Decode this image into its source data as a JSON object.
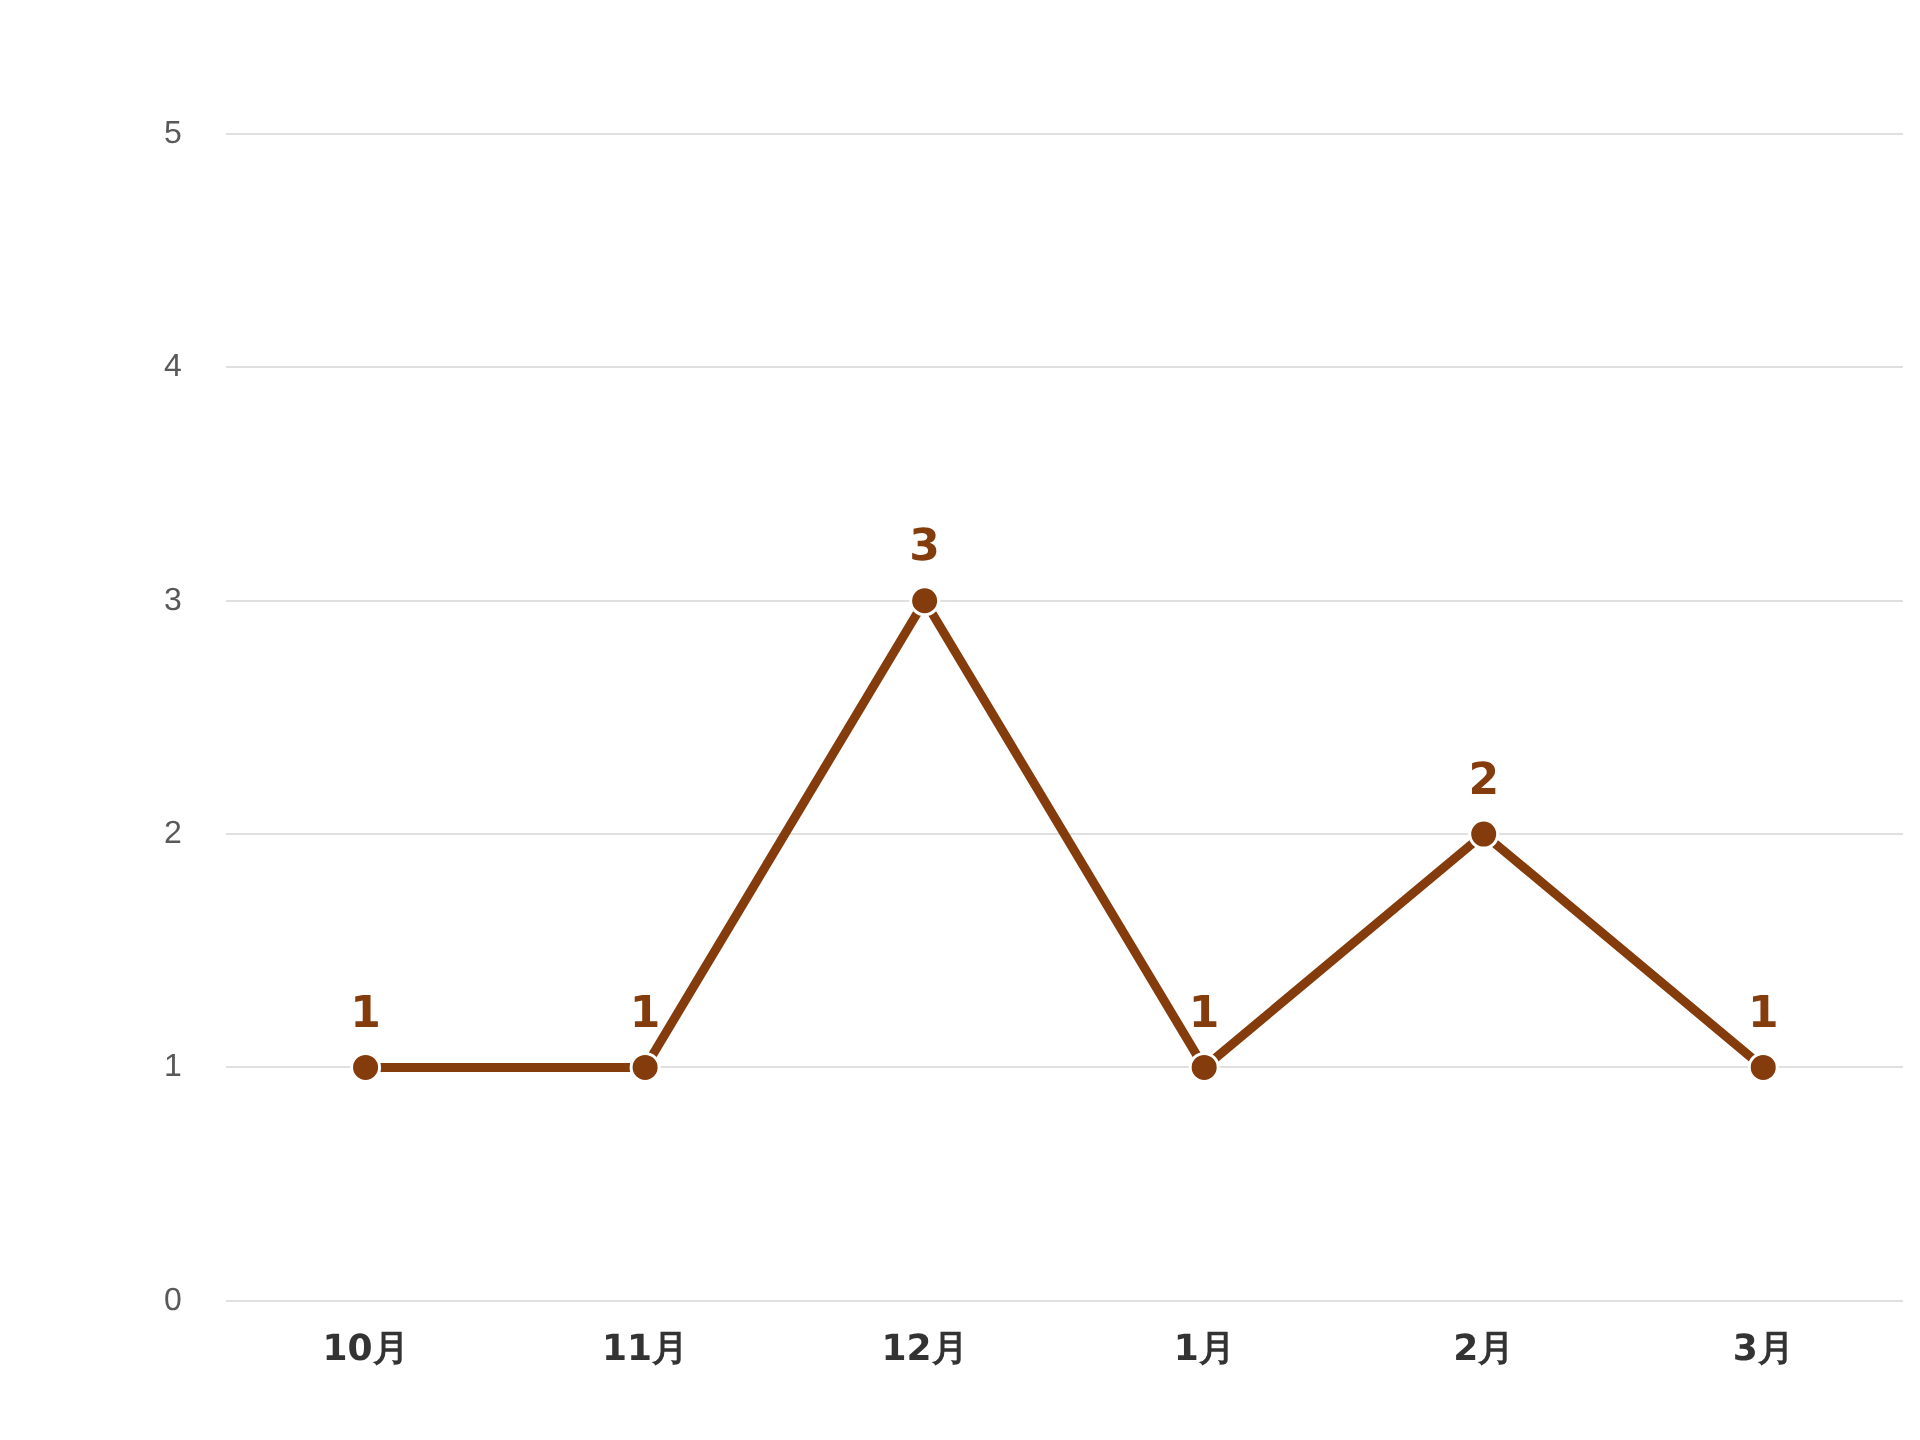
{
  "chart_data": {
    "type": "line",
    "categories": [
      "10月",
      "11月",
      "12月",
      "1月",
      "2月",
      "3月"
    ],
    "series": [
      {
        "color": "#843c0c",
        "values": [
          1,
          1,
          3,
          1,
          2,
          1
        ]
      }
    ],
    "ylim": [
      0,
      5
    ],
    "yticks": [
      0,
      1,
      2,
      3,
      4,
      5
    ],
    "grid": "y",
    "legend": false,
    "marker": "circle",
    "line_style": "solid",
    "data_labels": true
  }
}
